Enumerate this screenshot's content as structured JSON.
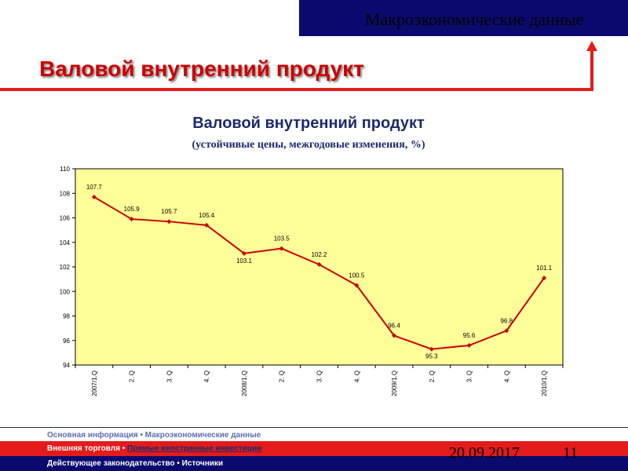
{
  "header": {
    "section": "Макроэкономические данные",
    "title": "Валовой внутренний продукт"
  },
  "chart_data": {
    "type": "line",
    "title": "Валовой внутренний продукт",
    "subtitle": "(устойчивые цены, межгодовые изменения, %)",
    "categories": [
      "2007/1.Q",
      "2. Q",
      "3. Q",
      "4. Q",
      "2008/1.Q",
      "2. Q",
      "3. Q",
      "4. Q",
      "2009/1.Q",
      "2. Q",
      "3. Q",
      "4. Q",
      "2010/1.Q"
    ],
    "series": [
      {
        "values": [
          107.7,
          105.9,
          105.7,
          105.4,
          103.1,
          103.5,
          102.2,
          100.5,
          96.4,
          95.3,
          95.6,
          96.8,
          101.1
        ]
      }
    ],
    "data_labels": [
      "107.7",
      "105.9",
      "105.7",
      "105.4",
      "103.1",
      "103.5",
      "102.2",
      "100.5",
      "96.4",
      "95.3",
      "95.6",
      "96.8",
      "101.1"
    ],
    "ylim": [
      94,
      110
    ],
    "yticks": [
      94,
      96,
      98,
      100,
      102,
      104,
      106,
      108,
      110
    ],
    "grid": false,
    "legend": "none",
    "plot_background": "#ffff99",
    "line_color": "#cc0000"
  },
  "footer": {
    "row1": "Основная информация • Макроэкономические данные",
    "row2_prefix": "Внешняя торговля • ",
    "row2_link": "Прямые иностранные инвестиции",
    "row3": "Действующее законодательство • Источники",
    "date": "20.09.2017",
    "page": "11"
  },
  "colors": {
    "accent_red": "#e41b1b",
    "navy": "#0a0a6e",
    "title_blue": "#1b2a6b"
  }
}
